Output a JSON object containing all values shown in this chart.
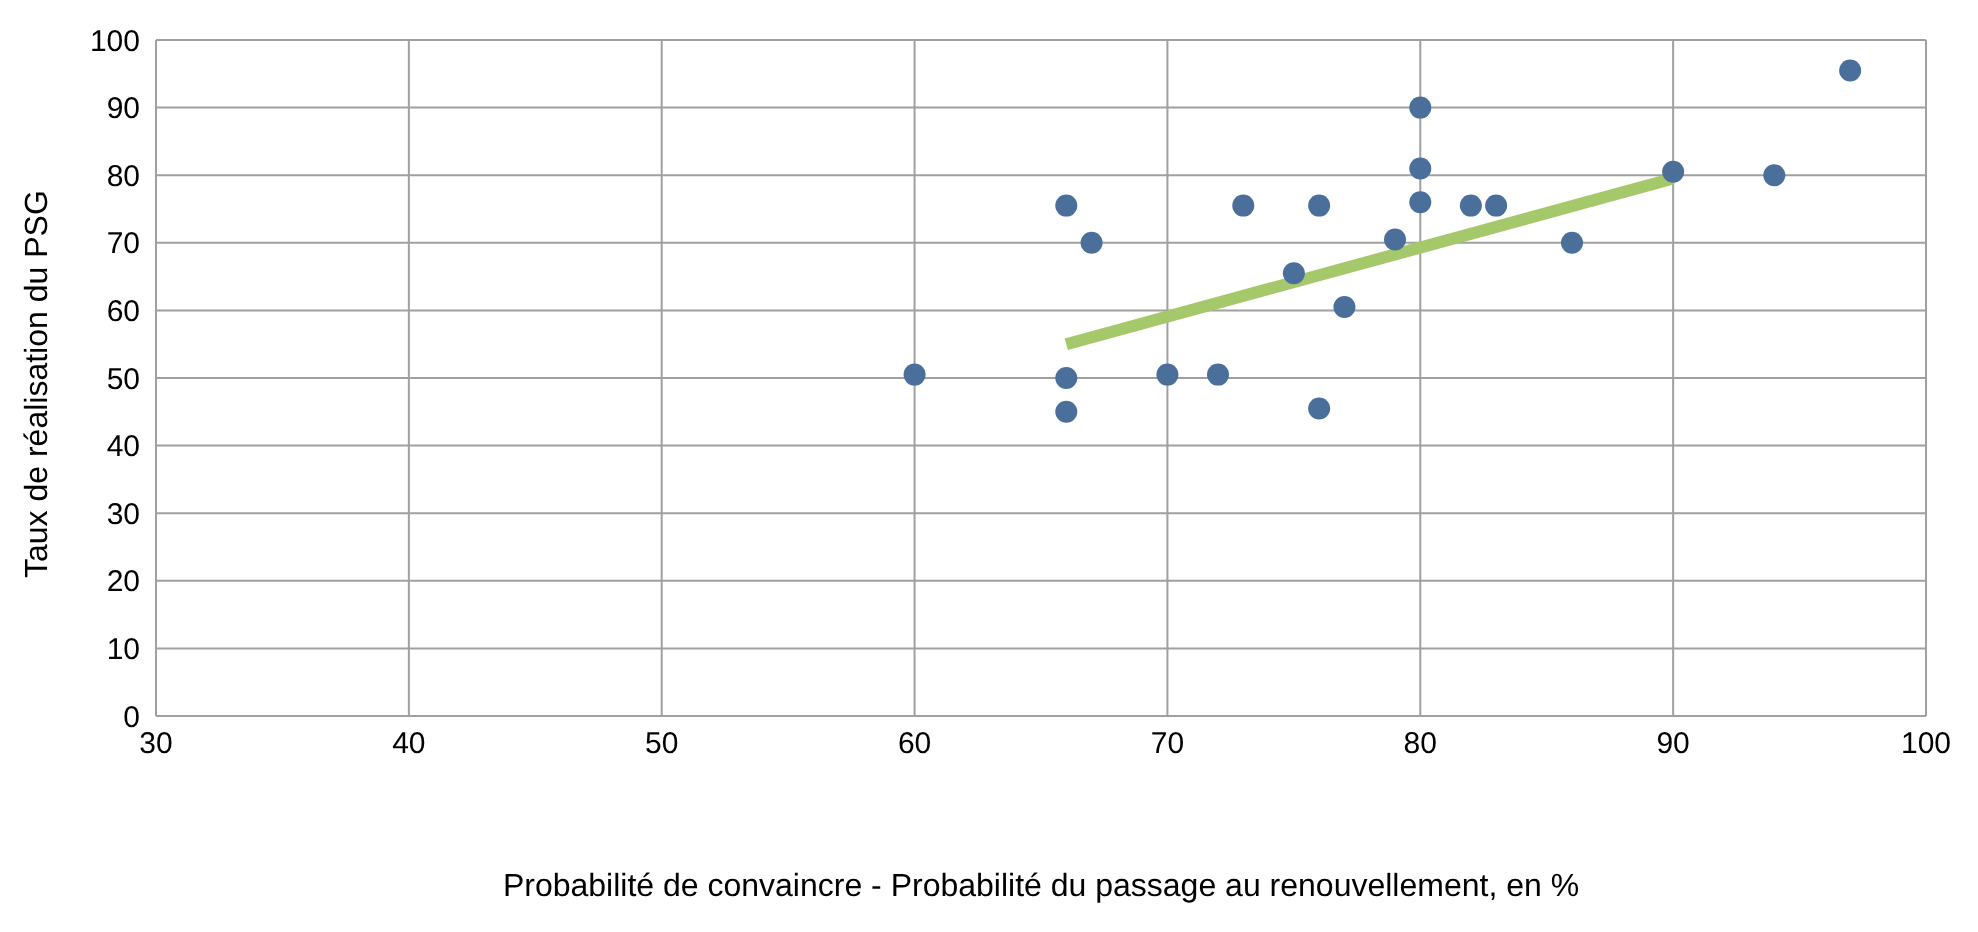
{
  "chart_data": {
    "type": "scatter",
    "xlabel": "Probabilité de convaincre - Probabilité du passage au renouvellement, en %",
    "ylabel": "Taux de réalisation du PSG",
    "xlim": [
      30,
      100
    ],
    "xticks": [
      30,
      40,
      50,
      60,
      70,
      80,
      90,
      100
    ],
    "ylim": [
      0,
      100
    ],
    "yticks": [
      0,
      10,
      20,
      30,
      40,
      50,
      60,
      70,
      80,
      90,
      100
    ],
    "grid": true,
    "series": [
      {
        "color": "#4a6f9b",
        "marker": "circle",
        "x": [
          60,
          66,
          66,
          66,
          67,
          70,
          72,
          73,
          75,
          76,
          76,
          77,
          79,
          80,
          80,
          80,
          82,
          83,
          86,
          90,
          94,
          97
        ],
        "values": [
          50.5,
          75.5,
          50,
          45,
          70,
          50.5,
          50.5,
          75.5,
          65.5,
          75.5,
          45.5,
          60.5,
          70.5,
          90,
          81,
          76,
          75.5,
          75.5,
          70,
          80.5,
          80,
          95.5
        ]
      },
      {
        "type": "line",
        "color": "#a5c86a",
        "x": [
          66,
          90
        ],
        "values": [
          55,
          79.5
        ]
      }
    ]
  }
}
